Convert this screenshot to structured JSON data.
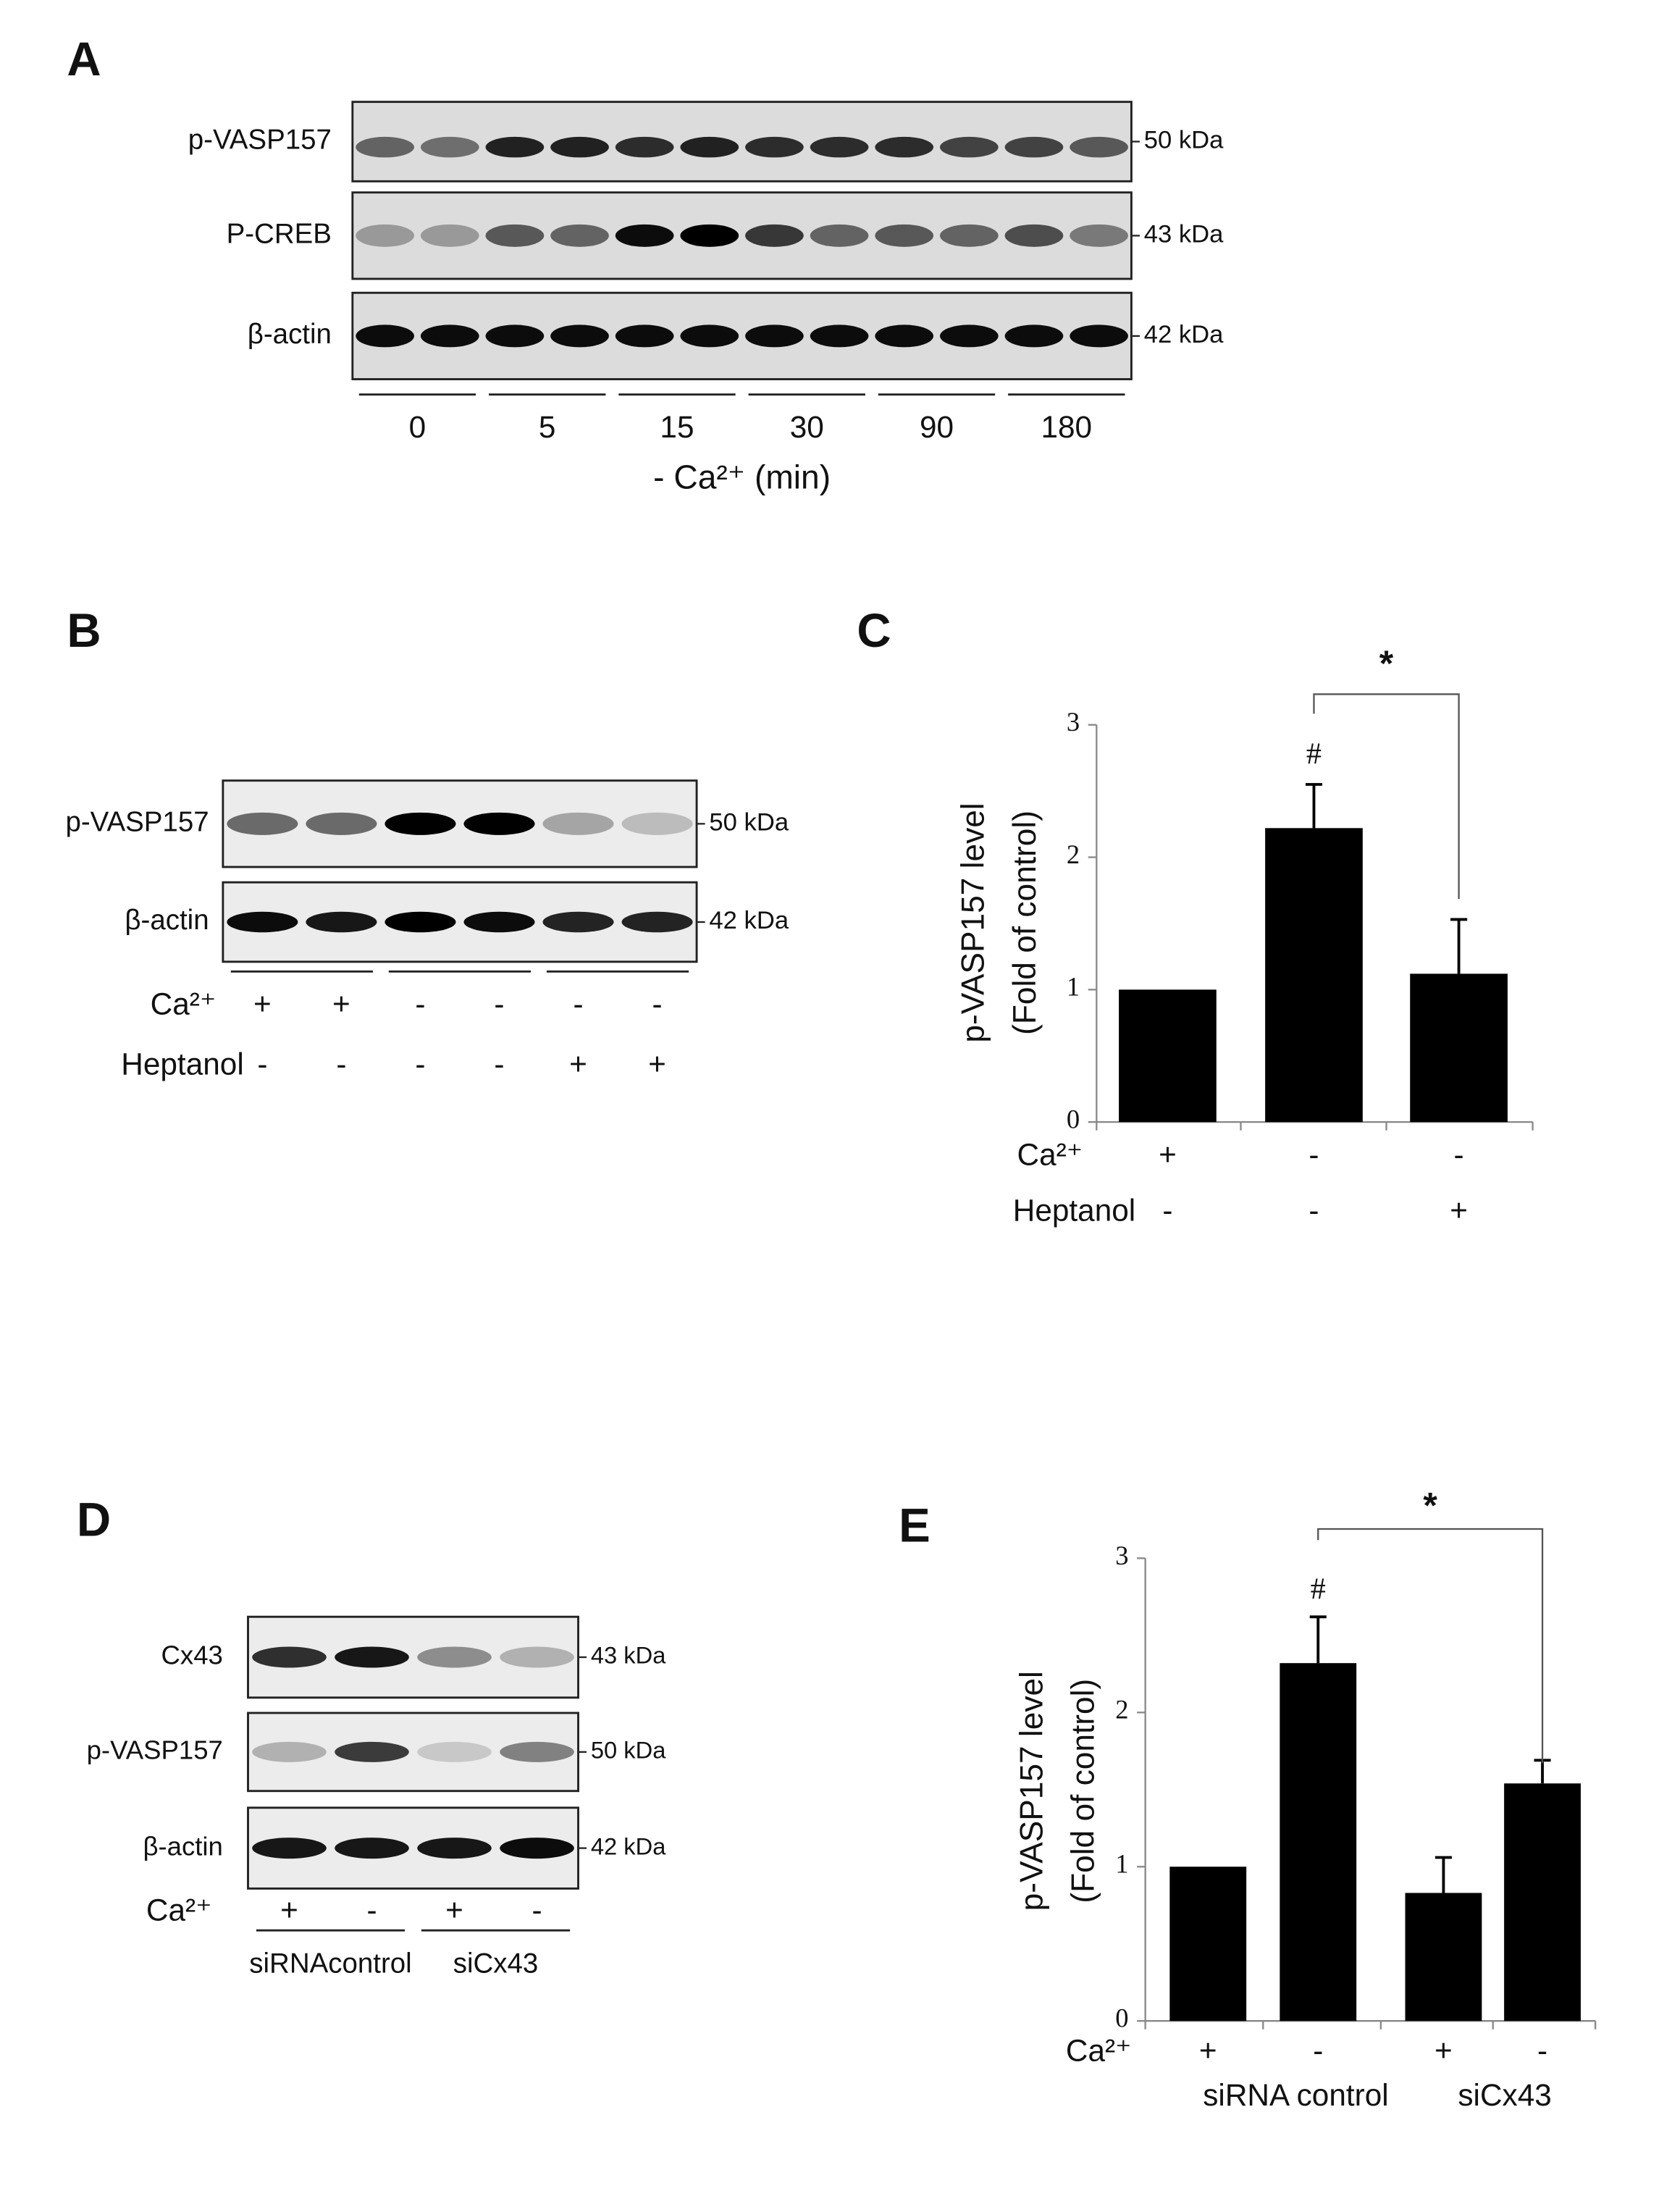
{
  "blots": [
    {
      "panel": "A",
      "rows": [
        {
          "name": "p-VASP157",
          "size": "50 kDa"
        },
        {
          "name": "P-CREB",
          "size": "43 kDa"
        },
        {
          "name": "β-actin",
          "size": "42 kDa"
        }
      ],
      "timepoints": [
        0,
        5,
        15,
        30,
        90,
        180
      ],
      "xlabel": "- Ca²⁺ (min)"
    },
    {
      "panel": "B",
      "rows": [
        {
          "name": "p-VASP157",
          "size": "50 kDa"
        },
        {
          "name": "β-actin",
          "size": "42 kDa"
        }
      ],
      "conditions": [
        {
          "name": "Ca²⁺",
          "values": [
            "+",
            "+",
            "-",
            "-",
            "-",
            "-"
          ]
        },
        {
          "name": "Heptanol",
          "values": [
            "-",
            "-",
            "-",
            "-",
            "+",
            "+"
          ]
        }
      ]
    },
    {
      "panel": "D",
      "rows": [
        {
          "name": "Cx43",
          "size": "43 kDa"
        },
        {
          "name": "p-VASP157",
          "size": "50 kDa"
        },
        {
          "name": "β-actin",
          "size": "42 kDa"
        }
      ],
      "conditions": [
        {
          "name": "Ca²⁺",
          "values": [
            "+",
            "-",
            "+",
            "-"
          ]
        }
      ],
      "groups": [
        "siRNAcontrol",
        "siCx43"
      ]
    }
  ],
  "chart_data": [
    {
      "panel": "C",
      "type": "bar",
      "y_label": [
        "p-VASP157  level",
        "(Fold of control)"
      ],
      "ylim": [
        0,
        3
      ],
      "yticks": [
        0,
        1,
        2,
        3
      ],
      "color": "#000000",
      "values": [
        1,
        2.22,
        1.12
      ],
      "errors": [
        null,
        0.33,
        0.41
      ],
      "conditions": [
        {
          "name": "Ca²⁺",
          "values": [
            "+",
            "-",
            "-"
          ]
        },
        {
          "name": "Heptanol",
          "values": [
            "-",
            "-",
            "+"
          ]
        }
      ],
      "annotations": [
        "#",
        "*"
      ]
    },
    {
      "panel": "E",
      "type": "bar",
      "y_label": [
        "p-VASP157  level",
        "(Fold of control)"
      ],
      "ylim": [
        0,
        3
      ],
      "yticks": [
        0,
        1,
        2,
        3
      ],
      "color": "#000000",
      "values": [
        1,
        2.32,
        0.83,
        1.54
      ],
      "errors": [
        null,
        0.3,
        0.23,
        0.15
      ],
      "conditions": [
        {
          "name": "Ca²⁺",
          "values": [
            "+",
            "-",
            "+",
            "-"
          ]
        }
      ],
      "groups": [
        "siRNA control",
        "siCx43"
      ],
      "annotations": [
        "#",
        "*"
      ]
    }
  ]
}
